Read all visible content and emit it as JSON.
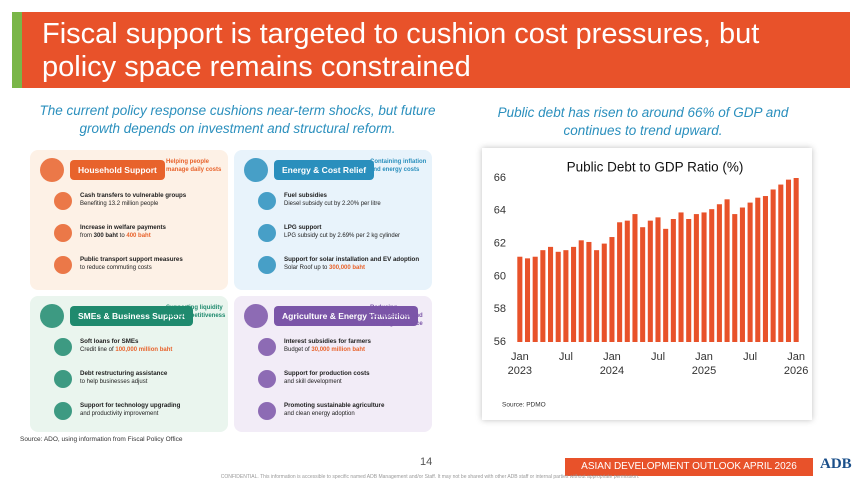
{
  "header": {
    "title": "Fiscal support is targeted to cushion cost pressures, but policy space remains constrained"
  },
  "left_subtitle": "The current policy response cushions near-term shocks, but future growth depends on investment and structural reform.",
  "right_subtitle": "Public debt has risen to around 66% of GDP and continues to trend upward.",
  "panels": [
    {
      "title": "Household Support",
      "tagline": "Helping people manage daily costs",
      "color": "#e8632c",
      "background": "#fdf1e6",
      "items": [
        {
          "title": "Cash transfers to vulnerable groups",
          "detail": [
            {
              "text": "Benefiting 13.2 million people"
            }
          ]
        },
        {
          "title": "Increase in welfare payments",
          "detail": [
            {
              "text": "from "
            },
            {
              "text": "300 baht",
              "style": "bold"
            },
            {
              "text": " to "
            },
            {
              "text": "400 baht",
              "style": "accent"
            }
          ]
        },
        {
          "title": "Public transport support measures",
          "detail": [
            {
              "text": "to reduce commuting costs"
            }
          ]
        }
      ]
    },
    {
      "title": "Energy & Cost Relief",
      "tagline": "Containing inflation and energy costs",
      "color": "#2a8fbd",
      "background": "#e8f3fb",
      "items": [
        {
          "title": "Fuel subsidies",
          "detail": [
            {
              "text": "Diesel subsidy cut by 2.20% per litre"
            }
          ]
        },
        {
          "title": "LPG support",
          "detail": [
            {
              "text": "LPG subsidy cut by 2.69% per 2 kg cylinder"
            }
          ]
        },
        {
          "title": "Support for solar installation and EV adoption",
          "detail": [
            {
              "text": "Solar Roof up to "
            },
            {
              "text": "300,000 baht",
              "style": "accent"
            }
          ]
        }
      ]
    },
    {
      "title": "SMEs & Business Support",
      "tagline": "Supporting liquidity and competitiveness",
      "color": "#1f8a6e",
      "background": "#eaf5ee",
      "items": [
        {
          "title": "Soft loans for SMEs",
          "detail": [
            {
              "text": "Credit line of "
            },
            {
              "text": "100,000 million baht",
              "style": "accent"
            }
          ]
        },
        {
          "title": "Debt restructuring assistance",
          "detail": [
            {
              "text": "to help businesses adjust"
            }
          ]
        },
        {
          "title": "Support for technology upgrading",
          "detail": [
            {
              "text": "and productivity improvement"
            }
          ]
        }
      ]
    },
    {
      "title": "Agriculture & Energy Transition",
      "tagline": "Reducing vulnerabilities and building resilience",
      "color": "#7b55a8",
      "background": "#f2ecf7",
      "items": [
        {
          "title": "Interest subsidies for farmers",
          "detail": [
            {
              "text": "Budget of "
            },
            {
              "text": "30,000 million baht",
              "style": "accent"
            }
          ]
        },
        {
          "title": "Support for production costs",
          "detail": [
            {
              "text": "and skill development"
            }
          ]
        },
        {
          "title": "Promoting sustainable agriculture",
          "detail": [
            {
              "text": "and clean energy adoption"
            }
          ]
        }
      ]
    }
  ],
  "left_source": "Source: ADO, using information from Fiscal Policy Office",
  "chart_source": "Source: PDMO",
  "page_number": "14",
  "footer_title": "ASIAN DEVELOPMENT OUTLOOK APRIL 2026",
  "logo": "ADB",
  "confidential": "CONFIDENTIAL. This information is accessible to specific named ADB Management and/or Staff. It may not be shared with other ADB staff or internal parties without appropriate permission.",
  "chart_data": {
    "type": "bar",
    "title": "Public Debt to GDP Ratio (%)",
    "color": "#e8522a",
    "categories": [
      "Jan 2023",
      null,
      null,
      null,
      null,
      null,
      "Jul",
      null,
      null,
      null,
      null,
      null,
      "Jan 2024",
      null,
      null,
      null,
      null,
      null,
      "Jul",
      null,
      null,
      null,
      null,
      null,
      "Jan 2025",
      null,
      null,
      null,
      null,
      null,
      "Jul",
      null,
      null,
      null,
      null,
      null,
      "Jan 2026"
    ],
    "values": [
      61.2,
      61.1,
      61.2,
      61.6,
      61.8,
      61.5,
      61.6,
      61.8,
      62.2,
      62.1,
      61.6,
      62.0,
      62.4,
      63.3,
      63.4,
      63.8,
      63.0,
      63.4,
      63.6,
      62.9,
      63.5,
      63.9,
      63.5,
      63.8,
      63.9,
      64.1,
      64.4,
      64.7,
      63.8,
      64.2,
      64.5,
      64.8,
      64.9,
      65.3,
      65.6,
      65.9,
      66.0
    ],
    "ylim": [
      56,
      66
    ],
    "yticks": [
      56,
      58,
      60,
      62,
      64,
      66
    ],
    "grid": false
  }
}
